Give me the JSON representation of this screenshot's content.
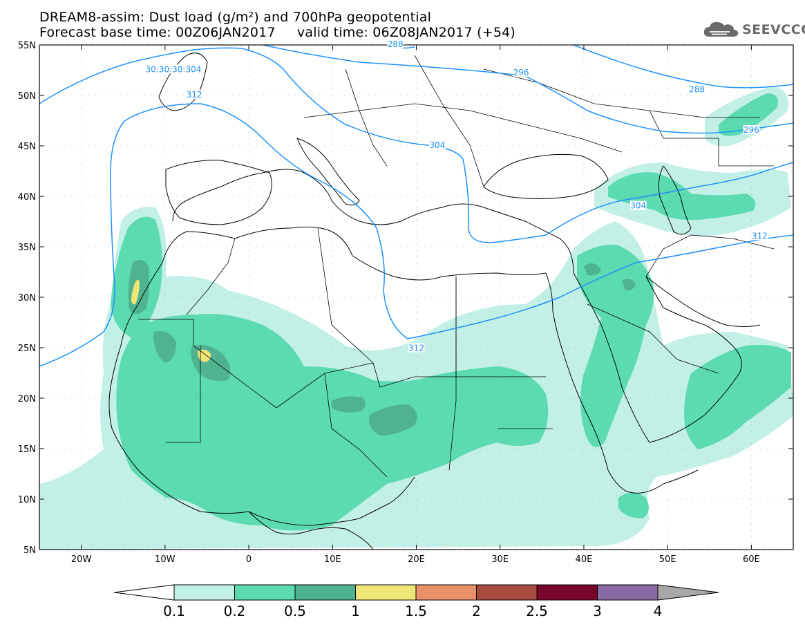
{
  "title": {
    "line1": "DREAM8-assim: Dust load (g/m²) and 700hPa geopotential",
    "line2": "Forecast base time: 00Z06JAN2017     valid time: 06Z08JAN2017 (+54)"
  },
  "logo": {
    "text": "SEEVCCC",
    "icon": "cloud-icon"
  },
  "map": {
    "lon_range": [
      -25,
      65
    ],
    "lat_range": [
      5,
      55
    ],
    "x_ticks": [
      {
        "lon": -20,
        "label": "20W"
      },
      {
        "lon": -10,
        "label": "10W"
      },
      {
        "lon": 0,
        "label": "0"
      },
      {
        "lon": 10,
        "label": "10E"
      },
      {
        "lon": 20,
        "label": "20E"
      },
      {
        "lon": 30,
        "label": "30E"
      },
      {
        "lon": 40,
        "label": "40E"
      },
      {
        "lon": 50,
        "label": "50E"
      },
      {
        "lon": 60,
        "label": "60E"
      }
    ],
    "y_ticks": [
      {
        "lat": 55,
        "label": "55N"
      },
      {
        "lat": 50,
        "label": "50N"
      },
      {
        "lat": 45,
        "label": "45N"
      },
      {
        "lat": 40,
        "label": "40N"
      },
      {
        "lat": 35,
        "label": "35N"
      },
      {
        "lat": 30,
        "label": "30N"
      },
      {
        "lat": 25,
        "label": "25N"
      },
      {
        "lat": 20,
        "label": "20N"
      },
      {
        "lat": 15,
        "label": "15N"
      },
      {
        "lat": 10,
        "label": "10N"
      },
      {
        "lat": 5,
        "label": "5N"
      }
    ],
    "dust_colors": {
      "c01": "#c3f0e6",
      "c02": "#5cdbb0",
      "c05": "#4fb38f",
      "c1": "#f0e678",
      "c15": "#e8906a",
      "c2": "#a84a3e",
      "c25": "#78062a",
      "c3": "#8a6aa2",
      "c4": "#a8a8a8"
    },
    "contour_color": "#1e90ff",
    "contour_labels": [
      {
        "text": "30:30:30:304",
        "lon": -9,
        "lat": 52.5
      },
      {
        "text": "312",
        "lon": -6.5,
        "lat": 50
      },
      {
        "text": "296",
        "lon": 32.5,
        "lat": 52.2
      },
      {
        "text": "288",
        "lon": 53.5,
        "lat": 50.5
      },
      {
        "text": "296",
        "lon": 60,
        "lat": 46.5
      },
      {
        "text": "304",
        "lon": 22.5,
        "lat": 45
      },
      {
        "text": "304",
        "lon": 46.5,
        "lat": 39
      },
      {
        "text": "312",
        "lon": 61,
        "lat": 36
      },
      {
        "text": "312",
        "lon": 20,
        "lat": 24.9
      },
      {
        "text": "288",
        "lon": 17.5,
        "lat": 55
      }
    ]
  },
  "colorbar": {
    "labels": [
      "0.1",
      "0.2",
      "0.5",
      "1",
      "1.5",
      "2",
      "2.5",
      "3",
      "4"
    ],
    "colors": [
      "#c3f0e6",
      "#5cdbb0",
      "#4fb38f",
      "#f0e678",
      "#e8906a",
      "#a84a3e",
      "#78062a",
      "#8a6aa2"
    ],
    "low_color": "#ffffff",
    "high_color": "#a8a8a8"
  }
}
